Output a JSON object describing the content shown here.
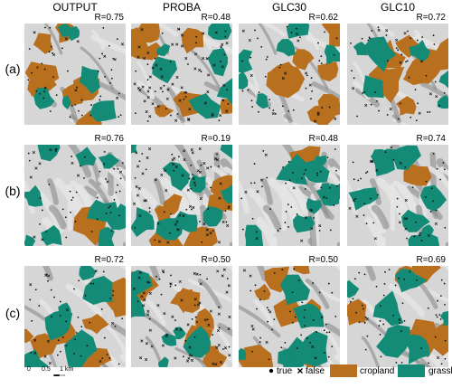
{
  "columns": [
    "OUTPUT",
    "PROBA",
    "GLC30",
    "GLC10"
  ],
  "rows": [
    {
      "label": "(a)",
      "r": [
        "R=0.75",
        "R=0.48",
        "R=0.62",
        "R=0.72"
      ]
    },
    {
      "label": "(b)",
      "r": [
        "R=0.76",
        "R=0.19",
        "R=0.48",
        "R=0.74"
      ]
    },
    {
      "label": "(c)",
      "r": [
        "R=0.72",
        "R=0.50",
        "R=0.50",
        "R=0.69"
      ]
    }
  ],
  "scale_bar": {
    "ticks": [
      "0",
      "0.5",
      "1 km"
    ]
  },
  "legend": {
    "true_label": "true",
    "false_label": "false",
    "cropland_label": "cropland",
    "grassland_label": "grassland"
  },
  "colors": {
    "cropland": "#b86f1e",
    "grassland": "#138b76",
    "relief_light": "#e4e4e4",
    "relief_dark": "#8a8a8a"
  }
}
